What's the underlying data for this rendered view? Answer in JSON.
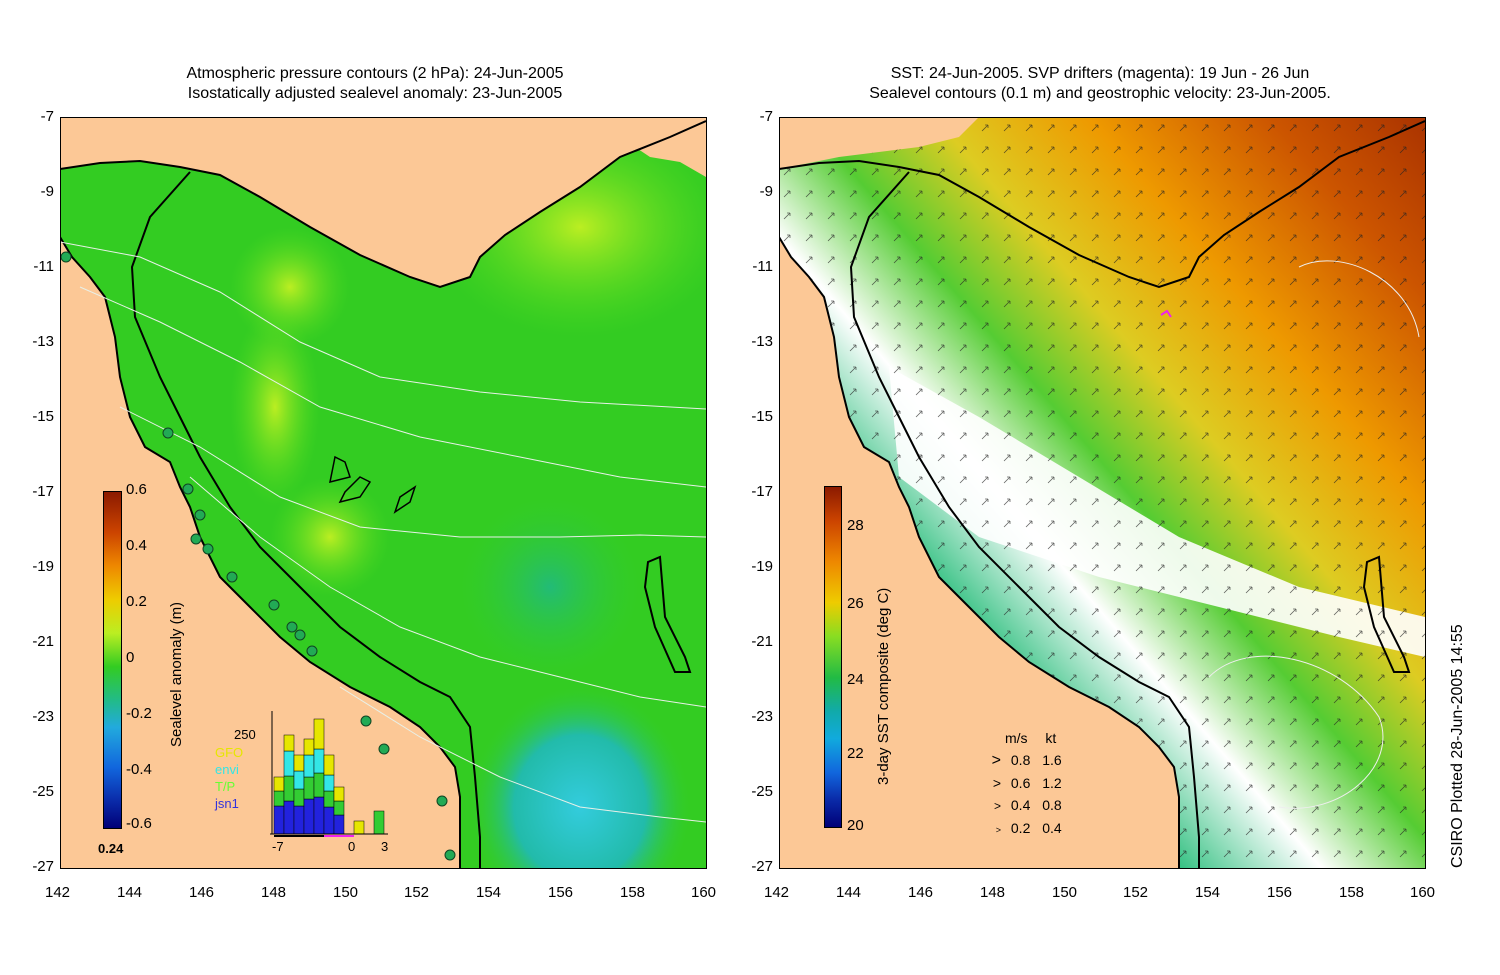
{
  "left_panel": {
    "title_line1": "Atmospheric pressure contours (2 hPa): 24-Jun-2005",
    "title_line2": "Isostatically adjusted sealevel anomaly: 23-Jun-2005",
    "y_ticks": [
      "-7",
      "-9",
      "-11",
      "-13",
      "-15",
      "-17",
      "-19",
      "-21",
      "-23",
      "-25",
      "-27"
    ],
    "x_ticks": [
      "142",
      "144",
      "146",
      "148",
      "150",
      "152",
      "154",
      "156",
      "158",
      "160"
    ],
    "colorbar": {
      "label": "Sealevel anomaly (m)",
      "ticks": [
        "0.6",
        "0.4",
        "0.2",
        "0",
        "-0.2",
        "-0.4",
        "-0.6"
      ],
      "corner_label": "0.24"
    },
    "histogram": {
      "top_label": "250",
      "legend": [
        {
          "name": "GFO",
          "color": "#e6e600"
        },
        {
          "name": "envi",
          "color": "#33e6e6"
        },
        {
          "name": "T/P",
          "color": "#33cc33"
        },
        {
          "name": "jsn1",
          "color": "#2222dd"
        }
      ],
      "x_ticks": [
        "-7",
        "0",
        "3"
      ]
    }
  },
  "right_panel": {
    "title_line1": "SST: 24-Jun-2005. SVP drifters (magenta): 19 Jun - 26 Jun",
    "title_line2": "Sealevel contours (0.1 m) and geostrophic velocity: 23-Jun-2005.",
    "y_ticks": [
      "-7",
      "-9",
      "-11",
      "-13",
      "-15",
      "-17",
      "-19",
      "-21",
      "-23",
      "-25",
      "-27"
    ],
    "x_ticks": [
      "142",
      "144",
      "146",
      "148",
      "150",
      "152",
      "154",
      "156",
      "158",
      "160"
    ],
    "colorbar": {
      "label": "3-day SST composite (deg C)",
      "ticks": [
        "28",
        "26",
        "24",
        "22",
        "20"
      ]
    },
    "velocity_key": {
      "headers": [
        "m/s",
        "kt"
      ],
      "rows": [
        [
          "0.8",
          "1.6"
        ],
        [
          "0.6",
          "1.2"
        ],
        [
          "0.4",
          "0.8"
        ],
        [
          "0.2",
          "0.4"
        ]
      ]
    }
  },
  "side_note": "CSIRO Plotted 28-Jun-2005 14:55",
  "colors": {
    "land": "#fcc896",
    "ocean_green": "#33cc22",
    "sst_warm": "#cc4400",
    "sst_cold": "#1122aa"
  }
}
